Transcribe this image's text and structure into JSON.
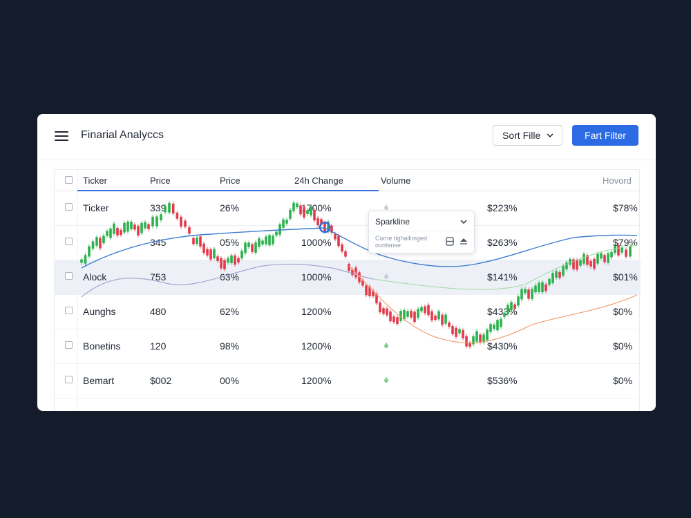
{
  "app": {
    "title": "Finarial Analyccs"
  },
  "toolbar": {
    "sort_label": "Sort Fille",
    "filter_label": "Fart Filter"
  },
  "table": {
    "headers": [
      "Ticker",
      "Price",
      "Price",
      "24h Change",
      "Volume",
      "Hovord"
    ],
    "rows": [
      {
        "name": "Ticker",
        "price": "339",
        "pct": "26%",
        "change": "1700%",
        "volume": "$223%",
        "last": "$78%",
        "highlighted": false
      },
      {
        "name": "",
        "price": "345",
        "pct": "05%",
        "change": "1000%",
        "volume": "$263%",
        "last": "$79%",
        "highlighted": false
      },
      {
        "name": "Alock",
        "price": "753",
        "pct": "63%",
        "change": "1000%",
        "volume": "$141%",
        "last": "$01%",
        "highlighted": true
      },
      {
        "name": "Aunghs",
        "price": "480",
        "pct": "62%",
        "change": "1200%",
        "volume": "$433%",
        "last": "$0%",
        "highlighted": false
      },
      {
        "name": "Bonetins",
        "price": "120",
        "pct": "98%",
        "change": "1200%",
        "volume": "$430%",
        "last": "$0%",
        "highlighted": false
      },
      {
        "name": "Bemart",
        "price": "$002",
        "pct": "00%",
        "change": "1200%",
        "volume": "$536%",
        "last": "$0%",
        "highlighted": false
      }
    ]
  },
  "tooltip": {
    "title": "Sparkline",
    "description": "Corne tighallimged ountense",
    "icons": [
      "layout-icon",
      "triangle-up-icon"
    ]
  },
  "colors": {
    "background": "#141b2b",
    "primary": "#2d6be4",
    "candle_up": "#2bb24c",
    "candle_down": "#e3394a",
    "line_blue": "#3a7bd0",
    "line_orange": "#f0a070",
    "line_green": "#9ed89e",
    "line_purple": "#a9a4cf"
  }
}
